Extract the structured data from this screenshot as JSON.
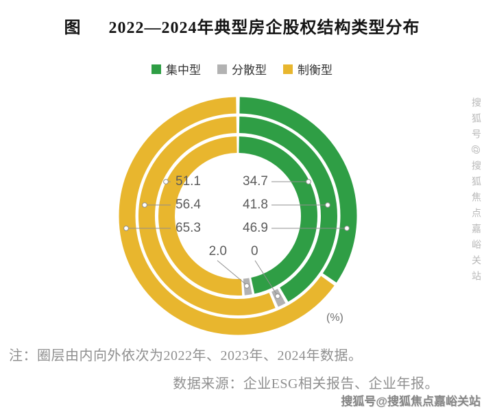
{
  "page": {
    "title_prefix": "图",
    "title": "2022—2024年典型房企股权结构类型分布"
  },
  "legend": [
    {
      "label": "集中型",
      "color": "#2f9e45"
    },
    {
      "label": "分散型",
      "color": "#b2b2b2"
    },
    {
      "label": "制衡型",
      "color": "#e8b62e"
    }
  ],
  "chart_data": {
    "type": "pie",
    "subtype": "concentric-donut-3-rings",
    "title": "2022—2024年典型房企股权结构类型分布",
    "unit_label": "(%)",
    "rings_inner_to_outer": [
      "2022年",
      "2023年",
      "2024年"
    ],
    "categories": [
      "集中型",
      "分散型",
      "制衡型"
    ],
    "series": [
      {
        "name": "集中型",
        "color": "#2f9e45",
        "values_inner_to_outer": [
          46.9,
          41.8,
          34.7
        ]
      },
      {
        "name": "分散型",
        "color": "#b2b2b2",
        "values_inner_to_outer": [
          2.0,
          1.8,
          0
        ]
      },
      {
        "name": "制衡型",
        "color": "#e8b62e",
        "values_inner_to_outer": [
          51.1,
          56.4,
          65.3
        ]
      }
    ],
    "center_rows": [
      {
        "left": "51.1",
        "right": "34.7"
      },
      {
        "left": "56.4",
        "right": "41.8"
      },
      {
        "left": "65.3",
        "right": "46.9"
      },
      {
        "left": "2.0",
        "right": "0"
      }
    ],
    "legend_position": "top",
    "start_angle_deg": 0,
    "direction": "clockwise"
  },
  "note": "注：圈层由内向外依次为2022年、2023年、2024年数据。",
  "source": "数据来源：企业ESG相关报告、企业年报。",
  "watermark": {
    "side": "搜狐号@搜狐焦点嘉峪关站",
    "bottom": "搜狐号@搜狐焦点嘉峪关站"
  }
}
